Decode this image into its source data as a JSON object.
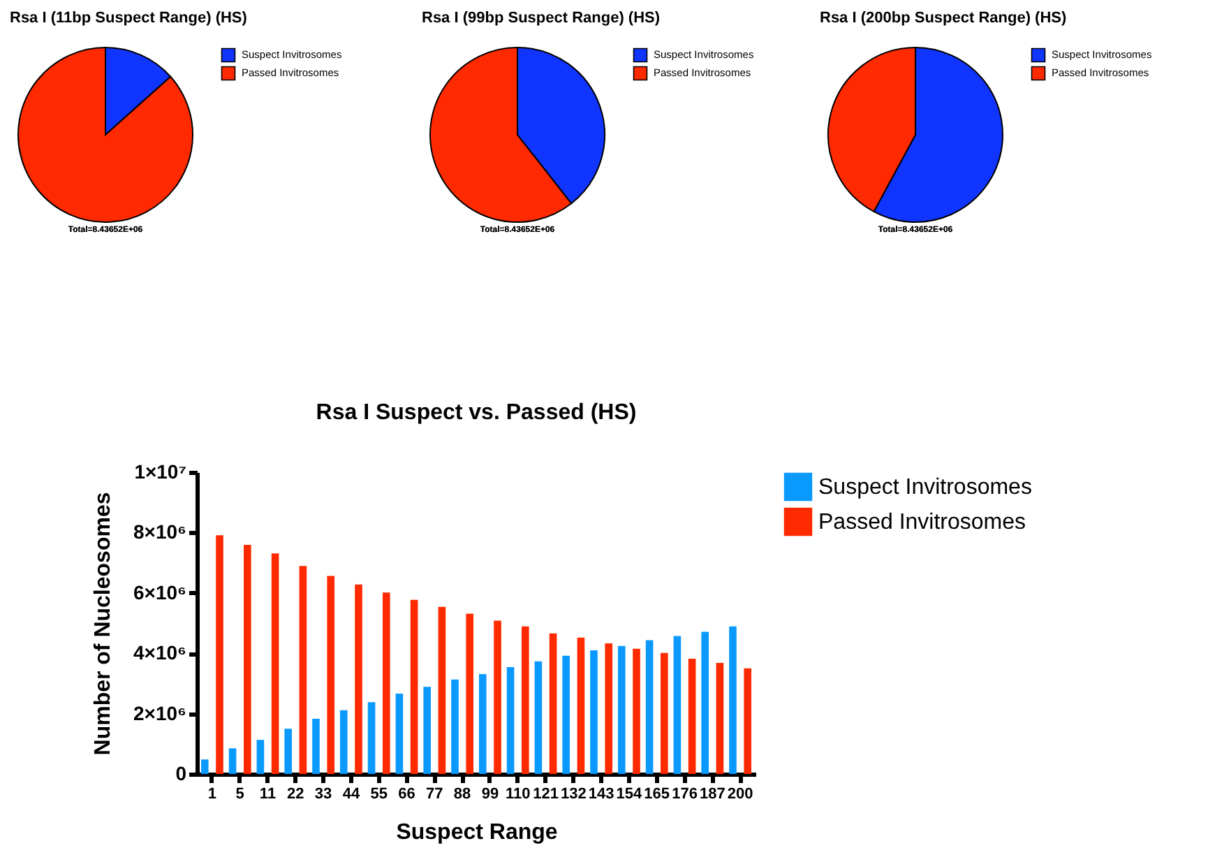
{
  "chart_data": [
    {
      "type": "pie",
      "title": "Rsa I (11bp Suspect Range) (HS)",
      "categories": [
        "Suspect Invitrosomes",
        "Passed Invitrosomes"
      ],
      "values": [
        13.4,
        86.6
      ],
      "colors": [
        "#0f35ff",
        "#ff2a00"
      ],
      "legend": "top right",
      "annotations": [
        "Total=8.43652E+06"
      ]
    },
    {
      "type": "pie",
      "title": "Rsa I (99bp Suspect Range) (HS)",
      "categories": [
        "Suspect Invitrosomes",
        "Passed Invitrosomes"
      ],
      "values": [
        39.4,
        60.6
      ],
      "colors": [
        "#0f35ff",
        "#ff2a00"
      ],
      "legend": "top right",
      "annotations": [
        "Total=8.43652E+06"
      ]
    },
    {
      "type": "pie",
      "title": "Rsa I (200bp Suspect Range) (HS)",
      "categories": [
        "Suspect Invitrosomes",
        "Passed Invitrosomes"
      ],
      "values": [
        57.9,
        42.1
      ],
      "colors": [
        "#0f35ff",
        "#ff2a00"
      ],
      "legend": "top right",
      "annotations": [
        "Total=8.43652E+06"
      ]
    },
    {
      "type": "bar",
      "title": "Rsa I Suspect vs. Passed (HS)",
      "xlabel": "Suspect Range",
      "ylabel": "Number of Nucleosomes",
      "categories": [
        "1",
        "5",
        "11",
        "22",
        "33",
        "44",
        "55",
        "66",
        "77",
        "88",
        "99",
        "110",
        "121",
        "132",
        "143",
        "154",
        "165",
        "176",
        "187",
        "200"
      ],
      "series": [
        {
          "name": "Suspect Invitrosomes",
          "color": "#0a99ff",
          "values": [
            480000,
            850000,
            1130000,
            1500000,
            1830000,
            2110000,
            2380000,
            2660000,
            2890000,
            3130000,
            3310000,
            3540000,
            3730000,
            3920000,
            4100000,
            4240000,
            4430000,
            4570000,
            4710000,
            4890000
          ]
        },
        {
          "name": "Passed Invitrosomes",
          "color": "#ff2a00",
          "values": [
            7910000,
            7590000,
            7310000,
            6890000,
            6560000,
            6280000,
            6010000,
            5770000,
            5540000,
            5310000,
            5080000,
            4890000,
            4660000,
            4520000,
            4330000,
            4150000,
            4010000,
            3820000,
            3680000,
            3500000
          ]
        }
      ],
      "ylim": [
        0,
        10000000
      ],
      "yticks": [
        {
          "value": 0,
          "label": "0"
        },
        {
          "value": 2000000,
          "label": "2×10⁶"
        },
        {
          "value": 4000000,
          "label": "4×10⁶"
        },
        {
          "value": 6000000,
          "label": "6×10⁶"
        },
        {
          "value": 8000000,
          "label": "8×10⁶"
        },
        {
          "value": 10000000,
          "label": "1×10⁷"
        }
      ],
      "grid": false,
      "legend": "top right"
    }
  ]
}
